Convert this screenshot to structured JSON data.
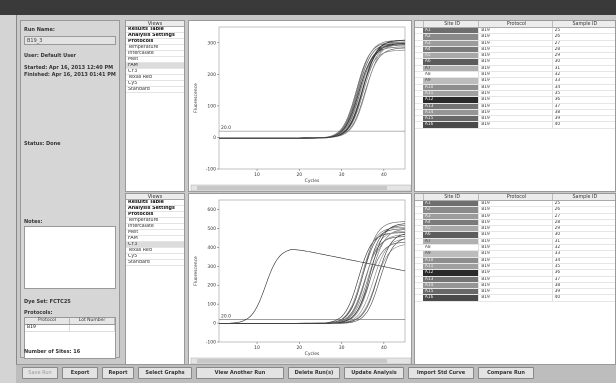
{
  "info": {
    "run_name_label": "Run Name:",
    "run_name_value": "B19_3",
    "user": "User: Default User",
    "started": "Started: Apr 16, 2013 12:40 PM",
    "finished": "Finished: Apr 16, 2013 01:41 PM",
    "status": "Status: Done",
    "notes_label": "Notes:",
    "dye_set": "Dye Set: FCTC25",
    "protocols_label": "Protocols:",
    "protocol_headers": [
      "Protocol",
      "Lot Number"
    ],
    "protocol_rows": [
      [
        "B19",
        ""
      ]
    ],
    "number_of_sites": "Number of Sites: 16"
  },
  "views": {
    "title": "Views",
    "items": [
      "Results Table",
      "Analysis Settings",
      "Protocols",
      "Temperature",
      "Intercalate",
      "Melt",
      "FAM",
      "CY3",
      "Texas Red",
      "Cy5",
      "Standard"
    ],
    "bold_items": [
      0,
      1,
      2
    ],
    "top_selected": 6,
    "bottom_selected": 7
  },
  "charts": {
    "xlabel": "Cycles",
    "ylabel": "Fluorescence",
    "threshold_label": "20.0",
    "top": {
      "xticks": [
        10,
        20,
        30,
        40
      ],
      "yticks": [
        -100,
        0,
        100,
        200,
        300
      ],
      "ylim": [
        -100,
        350
      ],
      "xlim": [
        1,
        45
      ],
      "threshold": 20
    },
    "bottom": {
      "xticks": [
        10,
        20,
        30,
        40
      ],
      "yticks": [
        -100,
        0,
        100,
        200,
        300,
        400,
        500,
        600
      ],
      "ylim": [
        -100,
        650
      ],
      "xlim": [
        1,
        45
      ],
      "threshold": 20
    }
  },
  "chart_data": [
    {
      "type": "line",
      "title": "",
      "xlabel": "Cycles",
      "ylabel": "Fluorescence",
      "xlim": [
        1,
        45
      ],
      "ylim": [
        -100,
        350
      ],
      "threshold": 20,
      "series_plateaus": [
        290,
        300,
        310,
        305,
        295,
        285,
        300,
        310,
        295,
        280,
        305,
        300,
        290,
        310,
        298,
        302
      ],
      "series_midpoints": [
        34,
        34.5,
        35,
        33.5,
        34.2,
        35.5,
        34.8,
        33.8,
        35.2,
        34.6,
        33.6,
        35.8,
        34.3,
        35.1,
        34.9,
        33.9
      ]
    },
    {
      "type": "line",
      "title": "",
      "xlabel": "Cycles",
      "ylabel": "Fluorescence",
      "xlim": [
        1,
        45
      ],
      "ylim": [
        -100,
        650
      ],
      "threshold": 20,
      "series_plateaus": [
        400,
        480,
        500,
        520,
        460,
        430,
        540,
        500,
        470,
        510,
        450,
        420,
        490,
        530,
        480,
        460
      ],
      "series_midpoints": [
        12,
        34,
        35,
        36,
        35.5,
        36.5,
        35.2,
        37,
        36.2,
        34.8,
        37.5,
        38,
        35.8,
        36.8,
        38.5,
        39
      ],
      "decay_series_index": 0
    }
  ],
  "table": {
    "headers": [
      "Site ID",
      "Protocol",
      "Sample ID"
    ],
    "rows": [
      [
        "A1",
        "B19",
        "25"
      ],
      [
        "A2",
        "B19",
        "26"
      ],
      [
        "A3",
        "B19",
        "27"
      ],
      [
        "A4",
        "B19",
        "28"
      ],
      [
        "A5",
        "B19",
        "29"
      ],
      [
        "A6",
        "B19",
        "30"
      ],
      [
        "A7",
        "B19",
        "31"
      ],
      [
        "A8",
        "B19",
        "32"
      ],
      [
        "A9",
        "B19",
        "33"
      ],
      [
        "A10",
        "B19",
        "34"
      ],
      [
        "A11",
        "B19",
        "35"
      ],
      [
        "A12",
        "B19",
        "36"
      ],
      [
        "A13",
        "B19",
        "37"
      ],
      [
        "A14",
        "B19",
        "38"
      ],
      [
        "A15",
        "B19",
        "39"
      ],
      [
        "A16",
        "B19",
        "40"
      ]
    ],
    "site_colors": [
      "#6e6e6e",
      "#8a8a8a",
      "#9c9c9c",
      "#7a7a7a",
      "#a8a8a8",
      "#5c5c5c",
      "#b0b0b0",
      "#ffffff",
      "#bcbcbc",
      "#8e8e8e",
      "#a0a0a0",
      "#2a2a2a",
      "#747474",
      "#969696",
      "#686868",
      "#4a4a4a"
    ]
  },
  "buttons": [
    {
      "label": "Save Run",
      "disabled": true
    },
    {
      "label": "Export",
      "disabled": false
    },
    {
      "label": "Report",
      "disabled": false
    },
    {
      "label": "Select Graphs",
      "disabled": false
    },
    {
      "label": "View Another Run",
      "disabled": false
    },
    {
      "label": "Delete Run(s)",
      "disabled": false
    },
    {
      "label": "Update Analysis",
      "disabled": false
    },
    {
      "label": "Import Std Curve",
      "disabled": false
    },
    {
      "label": "Compare Run",
      "disabled": false
    }
  ]
}
